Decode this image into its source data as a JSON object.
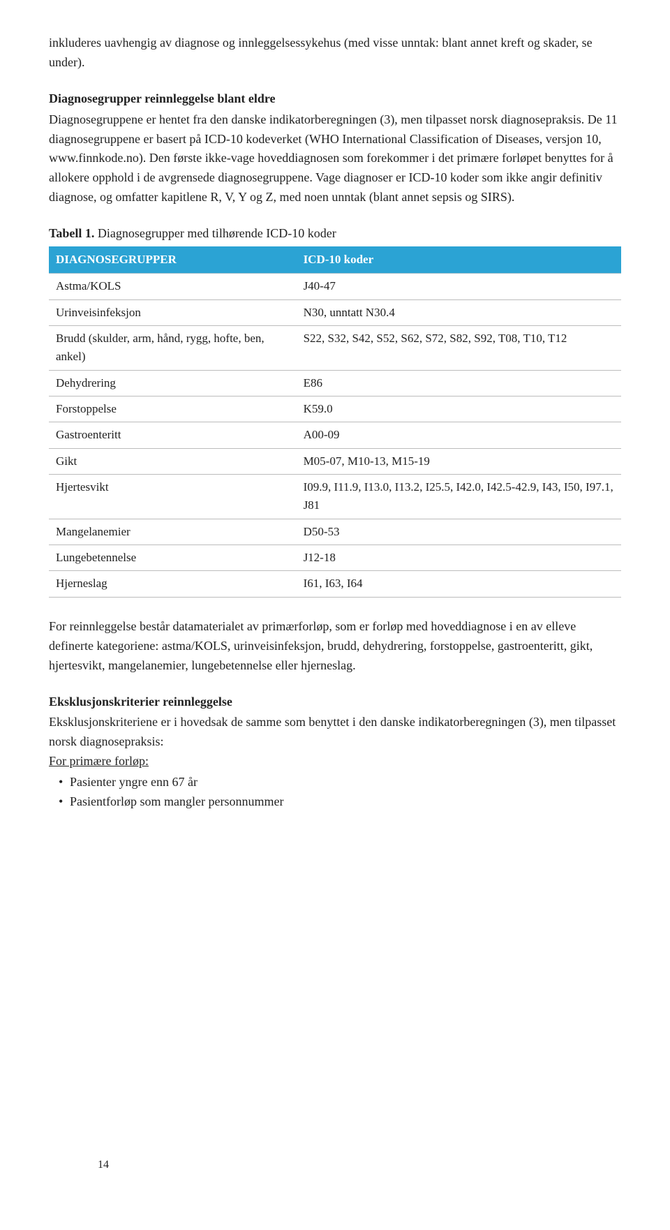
{
  "intro_para": "inkluderes uavhengig av diagnose og innleggelsessykehus (med visse unntak: blant annet kreft og skader, se under).",
  "section1": {
    "heading": "Diagnosegrupper reinnleggelse blant eldre",
    "body": "Diagnosegruppene er hentet fra den danske indikatorberegningen (3), men tilpasset norsk diagnosepraksis. De 11 diagnosegruppene er basert på ICD-10 kodeverket (WHO International Classification of Diseases, versjon 10, www.finnkode.no). Den første ikke-vage hoveddiagnosen som forekommer i det primære forløpet benyttes for å allokere opphold i de avgrensede diagnosegruppene. Vage diagnoser er ICD-10 koder som ikke angir definitiv diagnose, og omfatter kapitlene R, V, Y og Z, med noen unntak (blant annet sepsis og SIRS)."
  },
  "table": {
    "caption_bold": "Tabell 1.",
    "caption_rest": " Diagnosegrupper med tilhørende ICD-10 koder",
    "header_left": "DIAGNOSEGRUPPER",
    "header_right": "ICD-10 koder",
    "rows": [
      {
        "l": "Astma/KOLS",
        "r": "J40-47"
      },
      {
        "l": "Urinveisinfeksjon",
        "r": "N30, unntatt N30.4"
      },
      {
        "l": "Brudd (skulder, arm, hånd, rygg, hofte, ben, ankel)",
        "r": "S22, S32, S42, S52, S62, S72, S82, S92, T08, T10, T12"
      },
      {
        "l": "Dehydrering",
        "r": "E86"
      },
      {
        "l": "Forstoppelse",
        "r": "K59.0"
      },
      {
        "l": "Gastroenteritt",
        "r": "A00-09"
      },
      {
        "l": "Gikt",
        "r": "M05-07, M10-13, M15-19"
      },
      {
        "l": "Hjertesvikt",
        "r": "I09.9, I11.9, I13.0, I13.2, I25.5, I42.0, I42.5-42.9, I43, I50, I97.1, J81"
      },
      {
        "l": "Mangelanemier",
        "r": "D50-53"
      },
      {
        "l": "Lungebetennelse",
        "r": "J12-18"
      },
      {
        "l": "Hjerneslag",
        "r": "I61, I63, I64"
      }
    ]
  },
  "para2": "For reinnleggelse består datamaterialet av primærforløp, som er forløp med hoveddiagnose i en av elleve definerte kategoriene: astma/KOLS, urinveisinfeksjon, brudd, dehydrering, forstoppelse, gastroenteritt, gikt, hjertesvikt, mangelanemier, lungebetennelse eller hjerneslag.",
  "section2": {
    "heading": "Eksklusjonskriterier reinnleggelse",
    "body": "Eksklusjonskriteriene er i hovedsak de samme som benyttet i den danske indikatorberegningen (3), men tilpasset norsk diagnosepraksis:",
    "list_heading": "For primære forløp:",
    "bullets": [
      "Pasienter yngre enn 67 år",
      "Pasientforløp som mangler personnummer"
    ]
  },
  "page_number": "14",
  "colors": {
    "table_header_bg": "#2ba3d4",
    "table_header_text": "#ffffff",
    "row_border": "#bcbcbc",
    "body_text": "#222222",
    "page_bg": "#ffffff"
  }
}
